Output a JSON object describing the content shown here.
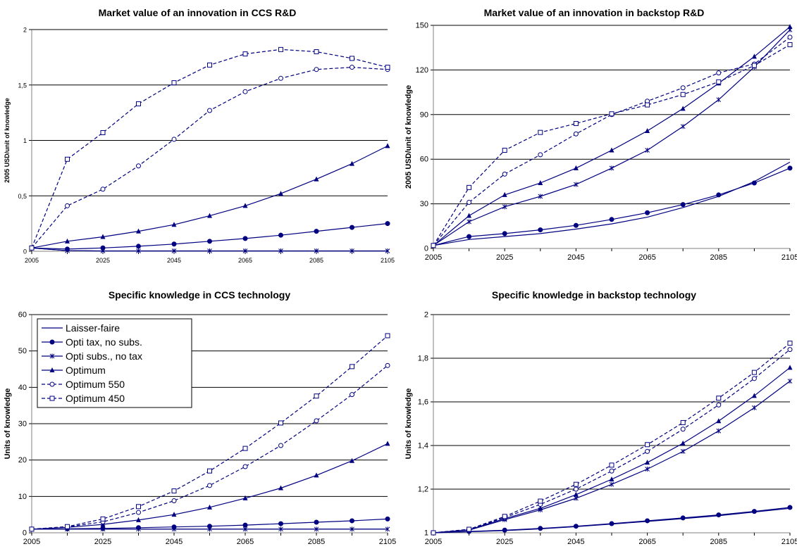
{
  "figure": {
    "legend": {
      "placement": "top-left of bottom-left panel",
      "entries": [
        "Laisser-faire",
        "Opti tax, no subs.",
        "Opti subs., no tax",
        "Optimum",
        "Optimum 550",
        "Optimum 450"
      ]
    }
  },
  "chart_data": [
    {
      "type": "line",
      "title": "Market value of an innovation in CCS R&D",
      "xlabel": "",
      "ylabel": "2005 USD/unit of knowledge",
      "x": [
        2005,
        2015,
        2025,
        2035,
        2045,
        2055,
        2065,
        2075,
        2085,
        2095,
        2105
      ],
      "xticks": [
        "2005",
        "2025",
        "2045",
        "2065",
        "2085",
        "2105"
      ],
      "ylim": [
        0,
        2
      ],
      "yticks": [
        0,
        0.5,
        1,
        1.5,
        2
      ],
      "ytick_labels": [
        "0",
        "0,5",
        "1",
        "1,5",
        "2"
      ],
      "grid": "horizontal",
      "series": [
        {
          "name": "Laisser-faire",
          "values": [
            0.03,
            0.005,
            0.002,
            0.002,
            0.002,
            0.002,
            0.002,
            0.002,
            0.002,
            0.002,
            0.002
          ]
        },
        {
          "name": "Opti tax, no subs.",
          "values": [
            0.03,
            0.02,
            0.03,
            0.045,
            0.065,
            0.09,
            0.115,
            0.145,
            0.18,
            0.215,
            0.25
          ]
        },
        {
          "name": "Opti subs., no tax",
          "values": [
            0.03,
            0.005,
            0.003,
            0.003,
            0.003,
            0.003,
            0.003,
            0.003,
            0.003,
            0.003,
            0.003
          ]
        },
        {
          "name": "Optimum",
          "values": [
            0.03,
            0.09,
            0.13,
            0.18,
            0.24,
            0.32,
            0.41,
            0.52,
            0.65,
            0.79,
            0.95
          ]
        },
        {
          "name": "Optimum 550",
          "values": [
            0.03,
            0.41,
            0.56,
            0.77,
            1.01,
            1.27,
            1.44,
            1.56,
            1.64,
            1.66,
            1.64
          ]
        },
        {
          "name": "Optimum 450",
          "values": [
            0.03,
            0.83,
            1.07,
            1.33,
            1.52,
            1.68,
            1.78,
            1.82,
            1.8,
            1.74,
            1.66
          ]
        }
      ]
    },
    {
      "type": "line",
      "title": "Market value of an innovation in backstop R&D",
      "xlabel": "",
      "ylabel": "2005 USD/unit of knowledge",
      "x": [
        2005,
        2015,
        2025,
        2035,
        2045,
        2055,
        2065,
        2075,
        2085,
        2095,
        2105
      ],
      "xticks": [
        "2005",
        "2025",
        "2045",
        "2065",
        "2085",
        "2105"
      ],
      "ylim": [
        0,
        150
      ],
      "yticks": [
        0,
        30,
        60,
        90,
        120,
        150
      ],
      "ytick_labels": [
        "0",
        "30",
        "60",
        "90",
        "120",
        "150"
      ],
      "grid": "horizontal",
      "series": [
        {
          "name": "Laisser-faire",
          "values": [
            2,
            6,
            8,
            10,
            13,
            16.5,
            21,
            27.5,
            35,
            45,
            58
          ]
        },
        {
          "name": "Opti tax, no subs.",
          "values": [
            2,
            8,
            10,
            12.5,
            15.5,
            19.5,
            24,
            29.5,
            36,
            44,
            54
          ]
        },
        {
          "name": "Opti subs., no tax",
          "values": [
            2,
            18,
            28,
            35,
            43,
            54,
            66,
            82,
            100,
            122,
            147
          ]
        },
        {
          "name": "Optimum",
          "values": [
            2,
            22,
            36,
            44,
            54,
            66,
            79,
            94,
            111,
            129,
            149
          ]
        },
        {
          "name": "Optimum 550",
          "values": [
            2,
            31,
            50,
            63,
            77,
            90,
            99,
            108,
            118,
            124,
            142
          ]
        },
        {
          "name": "Optimum 450",
          "values": [
            2,
            41,
            66,
            78,
            84,
            90.5,
            96.5,
            103.5,
            112,
            123,
            137
          ]
        }
      ]
    },
    {
      "type": "line",
      "title": "Specific knowledge in CCS technology",
      "xlabel": "",
      "ylabel": "Units of knowledge",
      "x": [
        2005,
        2015,
        2025,
        2035,
        2045,
        2055,
        2065,
        2075,
        2085,
        2095,
        2105
      ],
      "xticks": [
        "2005",
        "2025",
        "2045",
        "2065",
        "2085",
        "2105"
      ],
      "ylim": [
        0,
        60
      ],
      "yticks": [
        0,
        10,
        20,
        30,
        40,
        50,
        60
      ],
      "ytick_labels": [
        "0",
        "10",
        "20",
        "30",
        "40",
        "50",
        "60"
      ],
      "grid": "horizontal",
      "series": [
        {
          "name": "Laisser-faire",
          "values": [
            1,
            1,
            1,
            1,
            1,
            1,
            1,
            1,
            1,
            1,
            1
          ]
        },
        {
          "name": "Opti tax, no subs.",
          "values": [
            1,
            1.1,
            1.2,
            1.4,
            1.6,
            1.8,
            2.1,
            2.5,
            2.9,
            3.3,
            3.8
          ]
        },
        {
          "name": "Opti subs., no tax",
          "values": [
            1,
            1,
            1,
            1,
            1,
            1,
            1,
            1,
            1,
            1,
            1
          ]
        },
        {
          "name": "Optimum",
          "values": [
            1,
            1.5,
            2.3,
            3.5,
            5,
            7,
            9.5,
            12.3,
            15.8,
            19.8,
            24.5
          ]
        },
        {
          "name": "Optimum 550",
          "values": [
            1,
            1.6,
            3,
            5.6,
            8.8,
            13,
            18.2,
            24,
            30.8,
            38,
            46
          ]
        },
        {
          "name": "Optimum 450",
          "values": [
            1,
            1.7,
            3.8,
            7.2,
            11.5,
            17,
            23.2,
            30.2,
            37.6,
            45.7,
            54.2
          ]
        }
      ]
    },
    {
      "type": "line",
      "title": "Specific knowledge in backstop technology",
      "xlabel": "",
      "ylabel": "Units of knowledge",
      "x": [
        2005,
        2015,
        2025,
        2035,
        2045,
        2055,
        2065,
        2075,
        2085,
        2095,
        2105
      ],
      "xticks": [
        "2005",
        "2025",
        "2045",
        "2065",
        "2085",
        "2105"
      ],
      "ylim": [
        1,
        2
      ],
      "yticks": [
        1,
        1.2,
        1.4,
        1.6,
        1.8,
        2
      ],
      "ytick_labels": [
        "1",
        "1,2",
        "1,4",
        "1,6",
        "1,8",
        "2"
      ],
      "grid": "horizontal",
      "series": [
        {
          "name": "Laisser-faire",
          "values": [
            1,
            1.005,
            1.01,
            1.018,
            1.028,
            1.04,
            1.052,
            1.065,
            1.078,
            1.095,
            1.112
          ]
        },
        {
          "name": "Opti tax, no subs.",
          "values": [
            1,
            1.006,
            1.012,
            1.02,
            1.03,
            1.042,
            1.055,
            1.068,
            1.082,
            1.098,
            1.116
          ]
        },
        {
          "name": "Opti subs., no tax",
          "values": [
            1,
            1.012,
            1.06,
            1.105,
            1.158,
            1.222,
            1.292,
            1.373,
            1.467,
            1.573,
            1.695
          ]
        },
        {
          "name": "Optimum",
          "values": [
            1,
            1.014,
            1.065,
            1.112,
            1.175,
            1.245,
            1.322,
            1.41,
            1.512,
            1.628,
            1.757
          ]
        },
        {
          "name": "Optimum 550",
          "values": [
            1,
            1.015,
            1.07,
            1.13,
            1.2,
            1.283,
            1.373,
            1.475,
            1.586,
            1.707,
            1.84
          ]
        },
        {
          "name": "Optimum 450",
          "values": [
            1,
            1.016,
            1.075,
            1.145,
            1.222,
            1.31,
            1.404,
            1.505,
            1.617,
            1.735,
            1.869
          ]
        }
      ]
    }
  ]
}
